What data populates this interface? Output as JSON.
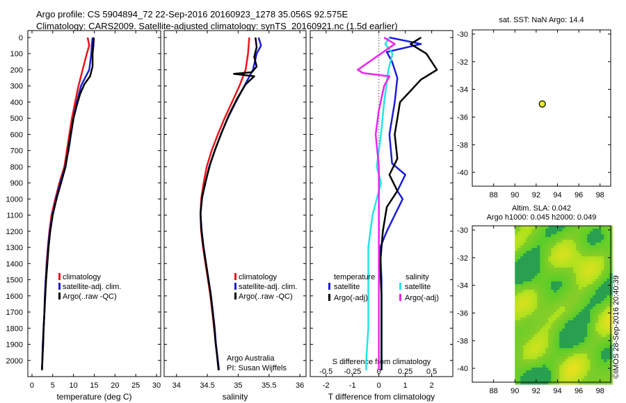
{
  "header": {
    "line1": "Argo profile: CS 5904894_72 22-Sep-2016 20160923_1278 35.056S 92.575E",
    "line2": "Climatology: CARS2009. Satellite-adjusted climatology: synTS_20160921.nc (1.5d earlier)"
  },
  "colors": {
    "climatology": "#e8141a",
    "satellite": "#1c1cd8",
    "argo": "#000000",
    "sal_satellite": "#22e4e8",
    "sal_argo": "#ee22ee",
    "marker": "#e8e820"
  },
  "chart_data": [
    {
      "id": "temperature",
      "type": "line",
      "xlabel": "temperature (deg C)",
      "xlim": [
        -1,
        31
      ],
      "ylim": [
        0,
        2100
      ],
      "yreversed": true,
      "xticks": [
        0,
        5,
        10,
        15,
        20,
        25,
        30
      ],
      "yticks": [
        0,
        100,
        200,
        300,
        400,
        500,
        600,
        700,
        800,
        900,
        1000,
        1100,
        1200,
        1300,
        1400,
        1500,
        1600,
        1700,
        1800,
        1900,
        2000
      ],
      "legend": [
        "climatology",
        "satellite-adj. clim.",
        "Argo(..raw -QC)"
      ],
      "series": [
        {
          "name": "climatology",
          "color": "#e8141a",
          "points": [
            [
              13.4,
              0
            ],
            [
              13.8,
              50
            ],
            [
              13.2,
              100
            ],
            [
              12.2,
              200
            ],
            [
              11.2,
              300
            ],
            [
              10.4,
              400
            ],
            [
              9.6,
              500
            ],
            [
              9.0,
              600
            ],
            [
              8.4,
              700
            ],
            [
              7.8,
              800
            ],
            [
              6.6,
              900
            ],
            [
              5.6,
              1000
            ],
            [
              4.7,
              1100
            ],
            [
              4.2,
              1200
            ],
            [
              3.8,
              1300
            ],
            [
              3.5,
              1400
            ],
            [
              3.3,
              1500
            ],
            [
              3.1,
              1600
            ],
            [
              3.0,
              1700
            ],
            [
              2.8,
              1800
            ],
            [
              2.6,
              1900
            ],
            [
              2.5,
              2000
            ],
            [
              2.4,
              2060
            ]
          ]
        },
        {
          "name": "satellite-adj. clim.",
          "color": "#1c1cd8",
          "points": [
            [
              14.6,
              0
            ],
            [
              14.4,
              50
            ],
            [
              14.3,
              100
            ],
            [
              13.8,
              200
            ],
            [
              11.8,
              300
            ],
            [
              10.8,
              400
            ],
            [
              10.0,
              500
            ],
            [
              9.4,
              600
            ],
            [
              8.8,
              700
            ],
            [
              8.0,
              800
            ],
            [
              6.8,
              900
            ],
            [
              5.8,
              1000
            ],
            [
              4.9,
              1100
            ],
            [
              4.3,
              1200
            ],
            [
              3.9,
              1300
            ],
            [
              3.6,
              1400
            ],
            [
              3.3,
              1500
            ],
            [
              3.1,
              1600
            ],
            [
              3.0,
              1700
            ],
            [
              2.8,
              1800
            ],
            [
              2.6,
              1900
            ],
            [
              2.5,
              2000
            ],
            [
              2.4,
              2060
            ]
          ]
        },
        {
          "name": "Argo(..raw -QC)",
          "color": "#000000",
          "points": [
            [
              14.9,
              0
            ],
            [
              14.8,
              50
            ],
            [
              14.6,
              100
            ],
            [
              14.6,
              180
            ],
            [
              14.0,
              240
            ],
            [
              12.6,
              290
            ],
            [
              11.6,
              350
            ],
            [
              10.8,
              420
            ],
            [
              10.0,
              500
            ],
            [
              9.3,
              600
            ],
            [
              8.7,
              700
            ],
            [
              8.1,
              800
            ],
            [
              7.0,
              900
            ],
            [
              5.9,
              1000
            ],
            [
              5.0,
              1100
            ],
            [
              4.4,
              1200
            ],
            [
              4.0,
              1300
            ],
            [
              3.7,
              1400
            ],
            [
              3.4,
              1500
            ],
            [
              3.2,
              1600
            ],
            [
              3.0,
              1700
            ],
            [
              2.8,
              1800
            ],
            [
              2.7,
              1900
            ],
            [
              2.5,
              2000
            ],
            [
              2.4,
              2060
            ]
          ]
        }
      ]
    },
    {
      "id": "salinity",
      "type": "line",
      "xlabel": "salinity",
      "xlim": [
        33.8,
        36.1
      ],
      "ylim": [
        0,
        2100
      ],
      "yreversed": true,
      "xticks": [
        34,
        34.5,
        35,
        35.5,
        36
      ],
      "legend": [
        "climatology",
        "satellite-adj. clim.",
        "Argo(..raw -QC)"
      ],
      "credits": [
        "Argo Australia",
        "PI: Susan Wijffels"
      ],
      "series": [
        {
          "name": "climatology",
          "color": "#e8141a",
          "points": [
            [
              35.18,
              0
            ],
            [
              35.16,
              100
            ],
            [
              35.12,
              200
            ],
            [
              35.02,
              300
            ],
            [
              34.9,
              400
            ],
            [
              34.78,
              500
            ],
            [
              34.67,
              600
            ],
            [
              34.57,
              700
            ],
            [
              34.49,
              800
            ],
            [
              34.44,
              900
            ],
            [
              34.4,
              1000
            ],
            [
              34.39,
              1100
            ],
            [
              34.4,
              1200
            ],
            [
              34.43,
              1300
            ],
            [
              34.47,
              1400
            ],
            [
              34.51,
              1500
            ],
            [
              34.55,
              1600
            ],
            [
              34.58,
              1700
            ],
            [
              34.61,
              1800
            ],
            [
              34.64,
              1900
            ],
            [
              34.67,
              2000
            ],
            [
              34.69,
              2060
            ]
          ]
        },
        {
          "name": "satellite-adj. clim.",
          "color": "#1c1cd8",
          "points": [
            [
              35.33,
              0
            ],
            [
              35.37,
              50
            ],
            [
              35.3,
              100
            ],
            [
              35.24,
              200
            ],
            [
              35.1,
              300
            ],
            [
              34.96,
              400
            ],
            [
              34.83,
              500
            ],
            [
              34.72,
              600
            ],
            [
              34.62,
              700
            ],
            [
              34.53,
              800
            ],
            [
              34.47,
              900
            ],
            [
              34.41,
              1000
            ],
            [
              34.39,
              1100
            ],
            [
              34.41,
              1200
            ],
            [
              34.44,
              1300
            ],
            [
              34.48,
              1400
            ],
            [
              34.52,
              1500
            ],
            [
              34.56,
              1600
            ],
            [
              34.59,
              1700
            ],
            [
              34.62,
              1800
            ],
            [
              34.64,
              1900
            ],
            [
              34.67,
              2000
            ],
            [
              34.69,
              2060
            ]
          ]
        },
        {
          "name": "Argo(..raw -QC)",
          "color": "#000000",
          "points": [
            [
              35.28,
              0
            ],
            [
              35.3,
              60
            ],
            [
              35.26,
              120
            ],
            [
              35.3,
              180
            ],
            [
              35.22,
              215
            ],
            [
              34.93,
              225
            ],
            [
              35.26,
              240
            ],
            [
              35.12,
              290
            ],
            [
              34.98,
              380
            ],
            [
              34.85,
              480
            ],
            [
              34.74,
              580
            ],
            [
              34.64,
              680
            ],
            [
              34.55,
              780
            ],
            [
              34.48,
              880
            ],
            [
              34.42,
              980
            ],
            [
              34.39,
              1080
            ],
            [
              34.4,
              1180
            ],
            [
              34.43,
              1280
            ],
            [
              34.47,
              1380
            ],
            [
              34.51,
              1480
            ],
            [
              34.55,
              1580
            ],
            [
              34.58,
              1680
            ],
            [
              34.61,
              1780
            ],
            [
              34.63,
              1880
            ],
            [
              34.66,
              1980
            ],
            [
              34.68,
              2060
            ]
          ]
        }
      ]
    },
    {
      "id": "difference",
      "type": "line",
      "xlabel": "T difference from climatology",
      "top_label": "S difference from climatology",
      "xlim": [
        -2.6,
        2.8
      ],
      "ylim": [
        0,
        2100
      ],
      "yreversed": true,
      "xticks": [
        -2,
        -1,
        0,
        1,
        2
      ],
      "s_ticks": [
        -0.5,
        -0.25,
        0,
        0.25,
        0.5
      ],
      "s_tick_labels": [
        "-0.5",
        "-0.25",
        "0",
        "0.25",
        "0.5"
      ],
      "legend_titles": [
        "temperature",
        "salinity"
      ],
      "legend": [
        "satellite",
        "Argo(-adj)",
        "satellite",
        "Argo(-adj)"
      ],
      "series": [
        {
          "name": "temperature satellite",
          "color": "#1c1cd8",
          "points": [
            [
              0.4,
              0
            ],
            [
              1.6,
              40
            ],
            [
              0.3,
              90
            ],
            [
              0.5,
              150
            ],
            [
              0.7,
              250
            ],
            [
              0.6,
              400
            ],
            [
              0.4,
              600
            ],
            [
              0.5,
              780
            ],
            [
              1.0,
              850
            ],
            [
              0.7,
              950
            ],
            [
              0.9,
              1000
            ],
            [
              0.6,
              1100
            ],
            [
              0.3,
              1200
            ],
            [
              0.05,
              1300
            ],
            [
              0.1,
              1500
            ],
            [
              0.1,
              2000
            ],
            [
              0.1,
              2060
            ]
          ]
        },
        {
          "name": "temperature Argo",
          "color": "#000000",
          "points": [
            [
              1.6,
              0
            ],
            [
              1.2,
              40
            ],
            [
              1.8,
              100
            ],
            [
              2.2,
              200
            ],
            [
              1.6,
              260
            ],
            [
              0.8,
              400
            ],
            [
              0.6,
              600
            ],
            [
              0.7,
              750
            ],
            [
              0.4,
              850
            ],
            [
              0.7,
              950
            ],
            [
              0.3,
              1050
            ],
            [
              0.15,
              1200
            ],
            [
              0.05,
              1400
            ],
            [
              0.1,
              1600
            ],
            [
              0.1,
              2060
            ]
          ]
        },
        {
          "name": "salinity satellite",
          "color": "#22e4e8",
          "points": [
            [
              0.1,
              0
            ],
            [
              0.06,
              40
            ],
            [
              0.13,
              100
            ],
            [
              0.09,
              200
            ],
            [
              0.05,
              400
            ],
            [
              0.02,
              600
            ],
            [
              -0.02,
              800
            ],
            [
              0.02,
              900
            ],
            [
              -0.06,
              1100
            ],
            [
              -0.1,
              1300
            ],
            [
              -0.1,
              1500
            ],
            [
              -0.1,
              1800
            ],
            [
              -0.12,
              2000
            ],
            [
              -0.12,
              2060
            ]
          ]
        },
        {
          "name": "salinity Argo",
          "color": "#ee22ee",
          "points": [
            [
              0.05,
              0
            ],
            [
              0.15,
              40
            ],
            [
              0.02,
              100
            ],
            [
              -0.2,
              200
            ],
            [
              -0.15,
              220
            ],
            [
              0.1,
              240
            ],
            [
              0.05,
              300
            ],
            [
              0.0,
              450
            ],
            [
              -0.03,
              600
            ],
            [
              0.0,
              800
            ],
            [
              0.0,
              1000
            ],
            [
              0.0,
              1200
            ],
            [
              0.0,
              1500
            ],
            [
              0.0,
              2060
            ]
          ]
        }
      ]
    },
    {
      "id": "location",
      "type": "scatter",
      "title": "sat. SST: NaN Argo: 14.4",
      "xlim": [
        86,
        99
      ],
      "ylim": [
        -41,
        -29.7
      ],
      "xticks": [
        88,
        90,
        92,
        94,
        96,
        98
      ],
      "yticks": [
        -30,
        -32,
        -34,
        -36,
        -38,
        -40
      ],
      "points": [
        [
          92.575,
          -35.056
        ]
      ]
    },
    {
      "id": "sla",
      "type": "heatmap",
      "title": "Altim. SLA: 0.042",
      "subtitle": "Argo h1000: 0.045 h2000: 0.049",
      "xlim": [
        86,
        99
      ],
      "ylim": [
        -41,
        -29.7
      ],
      "xticks": [
        88,
        90,
        92,
        94,
        96,
        98
      ],
      "yticks": [
        -30,
        -32,
        -34,
        -36,
        -38,
        -40
      ],
      "data_xlim": [
        90,
        99
      ],
      "points": [
        [
          92.575,
          -35.056
        ]
      ]
    }
  ],
  "timestamp": "©IMOS 28-Sep-2016 20:40:39"
}
